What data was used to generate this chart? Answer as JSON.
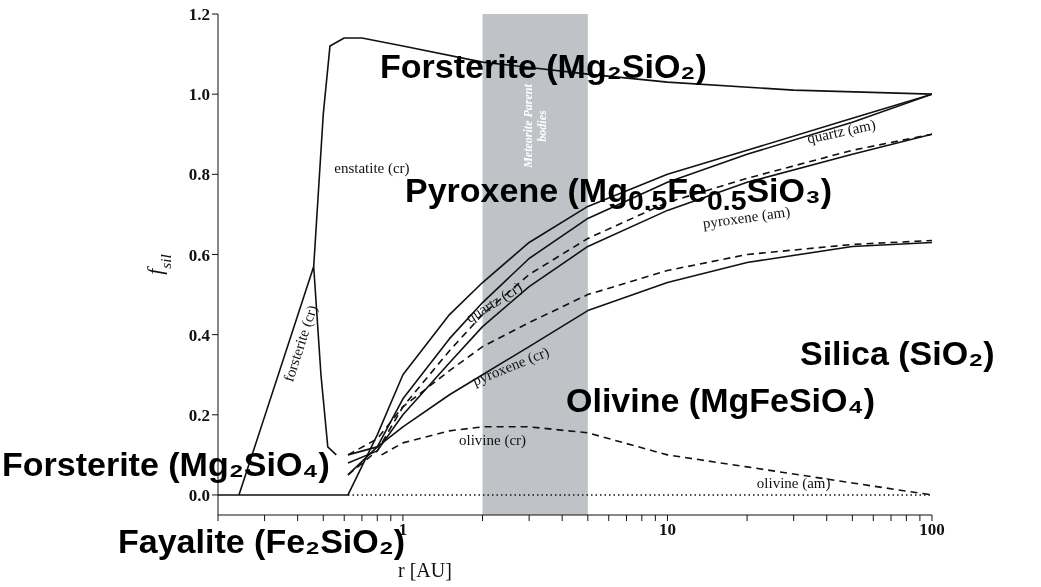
{
  "chart_data": {
    "type": "line",
    "xlabel": "r [AU]",
    "ylabel": "f$_{sil}$",
    "log": "x",
    "xlim": [
      0.2,
      100
    ],
    "ylim": [
      -0.05,
      1.2
    ],
    "xticks": [
      {
        "value": 0.2,
        "label": null
      },
      {
        "value": 0.3,
        "label": null
      },
      {
        "value": 0.4,
        "label": null
      },
      {
        "value": 0.5,
        "label": null
      },
      {
        "value": 0.6,
        "label": null
      },
      {
        "value": 0.7,
        "label": null
      },
      {
        "value": 0.8,
        "label": null
      },
      {
        "value": 0.9,
        "label": null
      },
      1,
      {
        "value": 2,
        "label": null
      },
      {
        "value": 3,
        "label": null
      },
      {
        "value": 4,
        "label": null
      },
      {
        "value": 5,
        "label": null
      },
      {
        "value": 6,
        "label": null
      },
      {
        "value": 7,
        "label": null
      },
      {
        "value": 8,
        "label": null
      },
      {
        "value": 9,
        "label": null
      },
      10,
      {
        "value": 20,
        "label": null
      },
      {
        "value": 30,
        "label": null
      },
      {
        "value": 40,
        "label": null
      },
      {
        "value": 50,
        "label": null
      },
      {
        "value": 60,
        "label": null
      },
      {
        "value": 70,
        "label": null
      },
      {
        "value": 80,
        "label": null
      },
      {
        "value": 90,
        "label": null
      },
      100
    ],
    "yticks": [
      {
        "value": 0,
        "label": "0.0"
      },
      {
        "value": 0.2,
        "label": "0.2"
      },
      {
        "value": 0.4,
        "label": "0.4"
      },
      {
        "value": 0.6,
        "label": "0.6"
      },
      {
        "value": 0.8,
        "label": "0.8"
      },
      {
        "value": 1,
        "label": "1.0"
      },
      {
        "value": 1.2,
        "label": "1.2"
      }
    ],
    "grid": false,
    "legend": false,
    "marker": "none",
    "bands": [
      {
        "axis": "x",
        "from": 2,
        "to": 5,
        "label": "Meteorite Parent bodies",
        "color": "#bfc3c7"
      }
    ],
    "series": [
      {
        "name": "enstatite (cr)",
        "color": "#111111",
        "line_style": "solid",
        "x": [
          0.46,
          0.5,
          0.53,
          0.6,
          0.7,
          1,
          2,
          5,
          10,
          30,
          100
        ],
        "values": [
          0.57,
          0.95,
          1.12,
          1.14,
          1.14,
          1.12,
          1.08,
          1.05,
          1.03,
          1.01,
          1.0
        ]
      },
      {
        "name": "forsterite (cr)",
        "color": "#111111",
        "line_style": "solid",
        "x": [
          0.24,
          0.46,
          0.49,
          0.52,
          0.56
        ],
        "values": [
          0,
          0.57,
          0.3,
          0.12,
          0.1
        ]
      },
      {
        "color": "#111111",
        "line_style": "solid",
        "x": [
          0.2,
          0.62,
          0.8,
          1,
          1.5,
          2,
          3,
          5,
          10,
          20,
          50,
          100
        ],
        "values": [
          0,
          0,
          0.15,
          0.3,
          0.45,
          0.53,
          0.63,
          0.72,
          0.8,
          0.86,
          0.94,
          1.0
        ]
      },
      {
        "name": "quartz (cr)",
        "color": "#111111",
        "line_style": "solid",
        "x": [
          0.62,
          0.8,
          1,
          1.5,
          2,
          3,
          5,
          10,
          20,
          50,
          100
        ],
        "values": [
          0.05,
          0.12,
          0.24,
          0.39,
          0.48,
          0.59,
          0.69,
          0.78,
          0.85,
          0.93,
          1.0
        ]
      },
      {
        "name": "quartz (am)",
        "color": "#111111",
        "line_style": "dashed",
        "x": [
          0.62,
          0.8,
          1,
          1.5,
          2,
          3,
          5,
          10,
          20,
          50,
          100
        ],
        "values": [
          0.05,
          0.11,
          0.22,
          0.36,
          0.45,
          0.55,
          0.64,
          0.73,
          0.79,
          0.86,
          0.9
        ]
      },
      {
        "name": "pyroxene (am)",
        "color": "#111111",
        "line_style": "solid",
        "x": [
          0.62,
          0.8,
          1,
          1.5,
          2,
          3,
          5,
          10,
          20,
          50,
          100
        ],
        "values": [
          0.08,
          0.11,
          0.2,
          0.33,
          0.42,
          0.52,
          0.62,
          0.71,
          0.78,
          0.85,
          0.9
        ]
      },
      {
        "color": "#111111",
        "line_style": "dashed",
        "x": [
          0.62,
          0.8,
          1,
          1.5,
          2,
          3,
          5,
          10,
          20,
          50,
          100
        ],
        "values": [
          0.1,
          0.14,
          0.22,
          0.31,
          0.37,
          0.43,
          0.5,
          0.56,
          0.6,
          0.625,
          0.635
        ]
      },
      {
        "name": "pyroxene (cr)",
        "color": "#111111",
        "line_style": "solid",
        "x": [
          0.62,
          0.8,
          1,
          1.5,
          2,
          3,
          5,
          10,
          20,
          50,
          100
        ],
        "values": [
          0.1,
          0.12,
          0.17,
          0.25,
          0.3,
          0.37,
          0.46,
          0.53,
          0.58,
          0.62,
          0.63
        ]
      },
      {
        "name": "olivine (cr)",
        "color": "#111111",
        "line_style": "dashed",
        "x": [
          0.83,
          1,
          1.5,
          2,
          2.5,
          3,
          5,
          10,
          20,
          50,
          100
        ],
        "values": [
          0.1,
          0.13,
          0.16,
          0.17,
          0.17,
          0.17,
          0.155,
          0.1,
          0.07,
          0.03,
          0
        ]
      },
      {
        "name": "olivine (am)",
        "color": "#111111",
        "line_style": "dotted",
        "x": [
          0.62,
          2,
          10,
          30,
          100
        ],
        "values": [
          0,
          0,
          0,
          0,
          0
        ]
      }
    ],
    "annotations": [
      "Forsterite (Mg₂SiO₂)",
      "Pyroxene (Mg$_{0.5}$Fe$_{0.5}$SiO₃)",
      "Silica (SiO₂)",
      "Olivine (MgFeSiO₄)",
      "Forsterite (Mg₂SiO₄)",
      "Fayalite (Fe₂SiO₂)"
    ]
  }
}
